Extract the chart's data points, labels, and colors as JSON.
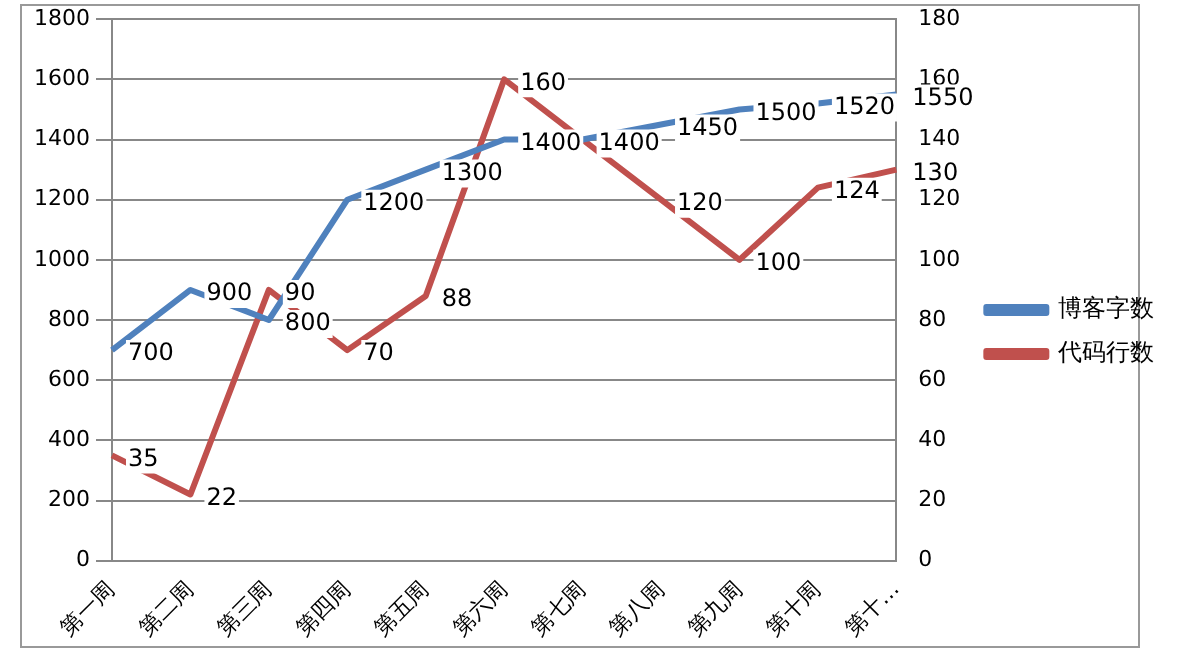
{
  "chart_data": {
    "type": "line",
    "categories": [
      "第一周",
      "第二周",
      "第三周",
      "第四周",
      "第五周",
      "第六周",
      "第七周",
      "第八周",
      "第九周",
      "第十周",
      "第十…"
    ],
    "series": [
      {
        "name": "博客字数",
        "color": "#4f81bd",
        "values": [
          700,
          900,
          800,
          1200,
          1300,
          1400,
          1400,
          1450,
          1500,
          1520,
          1550
        ],
        "value_labels": [
          "700",
          "900",
          "800",
          "1200",
          "1300",
          "1400",
          "1400",
          "1450",
          "1500",
          "1520",
          "1550"
        ]
      },
      {
        "name": "代码行数",
        "color": "#c0504d",
        "axis": "y2",
        "values": [
          35,
          22,
          90,
          70,
          88,
          160,
          140,
          120,
          100,
          124,
          130
        ],
        "value_labels": [
          "35",
          "22",
          "90",
          "70",
          "88",
          "160",
          null,
          "120",
          "100",
          "124",
          "130"
        ]
      }
    ],
    "ylim": [
      0,
      1800
    ],
    "yticks": [
      0,
      200,
      400,
      600,
      800,
      1000,
      1200,
      1400,
      1600,
      1800
    ],
    "y2lim": [
      0,
      180
    ],
    "y2ticks": [
      0,
      20,
      40,
      60,
      80,
      100,
      120,
      140,
      160,
      180
    ],
    "grid": "y",
    "legend": "right",
    "marker": "none"
  }
}
